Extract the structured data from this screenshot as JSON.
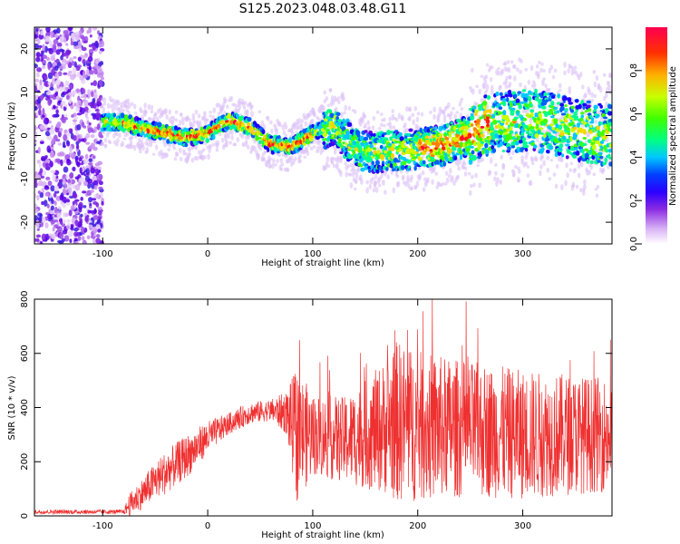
{
  "figure_title": "S125.2023.048.03.48.G11",
  "colors": {
    "snr_line": "#ef3030",
    "colormap": [
      "#e9c9f7",
      "#9f3fe6",
      "#5a00e6",
      "#1a00ff",
      "#0060ff",
      "#00c8ff",
      "#00ff90",
      "#40ff00",
      "#c8ff00",
      "#ffd000",
      "#ff8000",
      "#ff2000",
      "#ff0040"
    ]
  },
  "chart_data": [
    {
      "type": "heatmap",
      "xlabel": "Height of straight line (km)",
      "ylabel": "Frequency (Hz)",
      "xlim": [
        -165,
        385
      ],
      "ylim": [
        -25,
        25
      ],
      "xticks": [
        -100,
        0,
        100,
        200,
        300
      ],
      "yticks": [
        -20,
        -10,
        0,
        10,
        20
      ],
      "colorbar": {
        "label": "Normalized spectral amplitude",
        "range": [
          0,
          1
        ],
        "ticks": [
          "0.0",
          "0.2",
          "0.4",
          "0.6",
          "0.8"
        ]
      },
      "ridge": {
        "x": [
          -100,
          -80,
          -60,
          -40,
          -20,
          0,
          20,
          40,
          60,
          80,
          100,
          120,
          140,
          160,
          180,
          200,
          220,
          240,
          260,
          280,
          300,
          320,
          340,
          360,
          380
        ],
        "y": [
          3,
          3,
          1.5,
          0.5,
          -0.5,
          0.5,
          3.5,
          2,
          -2,
          -2.5,
          0.5,
          2.5,
          -3,
          -4,
          -3.5,
          -3,
          -2.5,
          -1,
          2,
          3,
          3.5,
          3,
          2,
          1,
          0
        ]
      }
    },
    {
      "type": "line",
      "xlabel": "Height of straight line (km)",
      "ylabel": "SNR (10 * v/v)",
      "xlim": [
        -165,
        385
      ],
      "ylim": [
        0,
        800
      ],
      "xticks": [
        -100,
        0,
        100,
        200,
        300
      ],
      "yticks": [
        0,
        200,
        400,
        600,
        800
      ],
      "envelope": {
        "x": [
          -165,
          -80,
          -75,
          -60,
          -50,
          -40,
          -20,
          0,
          20,
          40,
          60,
          75,
          85,
          100,
          130,
          150,
          170,
          180,
          200,
          250,
          300,
          350,
          385
        ],
        "mean": [
          15,
          15,
          40,
          90,
          130,
          160,
          220,
          290,
          340,
          380,
          390,
          380,
          300,
          300,
          280,
          300,
          330,
          350,
          330,
          320,
          300,
          300,
          300
        ],
        "spread": [
          8,
          8,
          40,
          60,
          70,
          80,
          80,
          60,
          40,
          40,
          40,
          80,
          250,
          150,
          160,
          200,
          250,
          300,
          280,
          250,
          240,
          220,
          210
        ]
      }
    }
  ]
}
